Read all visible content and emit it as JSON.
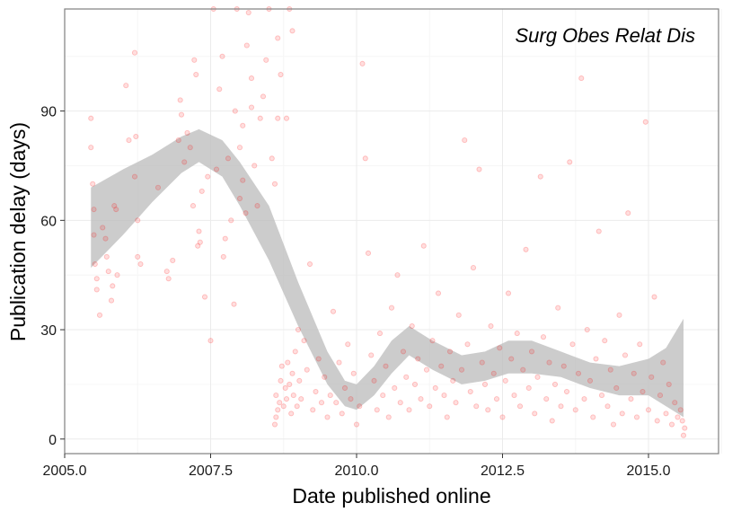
{
  "chart_data": {
    "type": "scatter",
    "title": "",
    "annotation": "Surg Obes Relat Dis",
    "xlabel": "Date published online",
    "ylabel": "Publication delay (days)",
    "xlim": [
      2005.0,
      2016.2
    ],
    "ylim": [
      -4,
      118
    ],
    "x_ticks": [
      2005.0,
      2007.5,
      2010.0,
      2012.5,
      2015.0
    ],
    "x_tick_labels": [
      "2005.0",
      "2007.5",
      "2010.0",
      "2012.5",
      "2015.0"
    ],
    "y_ticks": [
      0,
      30,
      60,
      90
    ],
    "y_tick_labels": [
      "0",
      "30",
      "60",
      "90"
    ],
    "grid": true,
    "colors": {
      "points": "#ff0000",
      "ribbon": "#bfbfbf",
      "grid": "#ebebeb",
      "border": "#7f7f7f"
    },
    "series": [
      {
        "kind": "points",
        "points": [
          [
            2005.45,
            88
          ],
          [
            2005.45,
            80
          ],
          [
            2005.48,
            70
          ],
          [
            2005.5,
            63
          ],
          [
            2005.5,
            56
          ],
          [
            2005.52,
            48
          ],
          [
            2005.55,
            44
          ],
          [
            2005.55,
            41
          ],
          [
            2005.6,
            34
          ],
          [
            2005.65,
            58
          ],
          [
            2005.7,
            55
          ],
          [
            2005.72,
            50
          ],
          [
            2005.75,
            46
          ],
          [
            2005.8,
            38
          ],
          [
            2005.82,
            42
          ],
          [
            2005.85,
            64
          ],
          [
            2005.88,
            63
          ],
          [
            2005.9,
            45
          ],
          [
            2006.05,
            97
          ],
          [
            2006.1,
            82
          ],
          [
            2006.2,
            106
          ],
          [
            2006.22,
            83
          ],
          [
            2006.2,
            72
          ],
          [
            2006.25,
            60
          ],
          [
            2006.25,
            50
          ],
          [
            2006.3,
            48
          ],
          [
            2006.6,
            69
          ],
          [
            2006.75,
            46
          ],
          [
            2006.78,
            44
          ],
          [
            2006.85,
            49
          ],
          [
            2006.95,
            82
          ],
          [
            2006.98,
            93
          ],
          [
            2007.0,
            89
          ],
          [
            2007.05,
            76
          ],
          [
            2007.1,
            84
          ],
          [
            2007.15,
            80
          ],
          [
            2007.2,
            64
          ],
          [
            2007.22,
            104
          ],
          [
            2007.25,
            100
          ],
          [
            2007.28,
            53
          ],
          [
            2007.3,
            57
          ],
          [
            2007.32,
            54
          ],
          [
            2007.35,
            68
          ],
          [
            2007.4,
            39
          ],
          [
            2007.45,
            72
          ],
          [
            2007.5,
            27
          ],
          [
            2007.55,
            118
          ],
          [
            2007.6,
            74
          ],
          [
            2007.65,
            96
          ],
          [
            2007.7,
            105
          ],
          [
            2007.72,
            50
          ],
          [
            2007.75,
            55
          ],
          [
            2007.8,
            77
          ],
          [
            2007.85,
            60
          ],
          [
            2007.9,
            37
          ],
          [
            2007.92,
            90
          ],
          [
            2007.95,
            118
          ],
          [
            2008.0,
            80
          ],
          [
            2008.0,
            66
          ],
          [
            2008.05,
            86
          ],
          [
            2008.05,
            71
          ],
          [
            2008.1,
            62
          ],
          [
            2008.12,
            108
          ],
          [
            2008.15,
            117
          ],
          [
            2008.2,
            91
          ],
          [
            2008.2,
            99
          ],
          [
            2008.25,
            75
          ],
          [
            2008.3,
            64
          ],
          [
            2008.35,
            88
          ],
          [
            2008.4,
            94
          ],
          [
            2008.45,
            104
          ],
          [
            2008.5,
            118
          ],
          [
            2008.55,
            77
          ],
          [
            2008.6,
            70
          ],
          [
            2008.65,
            88
          ],
          [
            2008.65,
            110
          ],
          [
            2008.7,
            100
          ],
          [
            2008.8,
            88
          ],
          [
            2008.85,
            118
          ],
          [
            2008.9,
            112
          ],
          [
            2008.6,
            4
          ],
          [
            2008.62,
            6
          ],
          [
            2008.62,
            12
          ],
          [
            2008.65,
            8
          ],
          [
            2008.68,
            10
          ],
          [
            2008.7,
            16
          ],
          [
            2008.72,
            20
          ],
          [
            2008.75,
            9
          ],
          [
            2008.78,
            14
          ],
          [
            2008.8,
            11
          ],
          [
            2008.82,
            21
          ],
          [
            2008.85,
            15
          ],
          [
            2008.88,
            7
          ],
          [
            2008.9,
            18
          ],
          [
            2008.92,
            12
          ],
          [
            2008.95,
            24
          ],
          [
            2008.98,
            9
          ],
          [
            2009.0,
            30
          ],
          [
            2009.02,
            16
          ],
          [
            2009.05,
            11
          ],
          [
            2009.1,
            27
          ],
          [
            2009.15,
            19
          ],
          [
            2009.2,
            48
          ],
          [
            2009.25,
            8
          ],
          [
            2009.3,
            13
          ],
          [
            2009.35,
            22
          ],
          [
            2009.4,
            10
          ],
          [
            2009.45,
            17
          ],
          [
            2009.5,
            6
          ],
          [
            2009.55,
            12
          ],
          [
            2009.6,
            35
          ],
          [
            2009.65,
            10
          ],
          [
            2009.7,
            21
          ],
          [
            2009.75,
            7
          ],
          [
            2009.8,
            14
          ],
          [
            2009.85,
            26
          ],
          [
            2009.9,
            11
          ],
          [
            2009.95,
            18
          ],
          [
            2010.0,
            4
          ],
          [
            2010.05,
            9
          ],
          [
            2010.1,
            103
          ],
          [
            2010.15,
            77
          ],
          [
            2010.2,
            51
          ],
          [
            2010.25,
            23
          ],
          [
            2010.3,
            16
          ],
          [
            2010.35,
            8
          ],
          [
            2010.4,
            29
          ],
          [
            2010.45,
            12
          ],
          [
            2010.5,
            20
          ],
          [
            2010.55,
            6
          ],
          [
            2010.6,
            36
          ],
          [
            2010.65,
            14
          ],
          [
            2010.7,
            45
          ],
          [
            2010.75,
            10
          ],
          [
            2010.8,
            24
          ],
          [
            2010.85,
            17
          ],
          [
            2010.9,
            8
          ],
          [
            2010.95,
            31
          ],
          [
            2011.0,
            15
          ],
          [
            2011.05,
            22
          ],
          [
            2011.1,
            11
          ],
          [
            2011.15,
            53
          ],
          [
            2011.2,
            19
          ],
          [
            2011.25,
            9
          ],
          [
            2011.3,
            27
          ],
          [
            2011.35,
            14
          ],
          [
            2011.4,
            40
          ],
          [
            2011.45,
            20
          ],
          [
            2011.5,
            12
          ],
          [
            2011.55,
            6
          ],
          [
            2011.6,
            24
          ],
          [
            2011.65,
            16
          ],
          [
            2011.7,
            10
          ],
          [
            2011.75,
            34
          ],
          [
            2011.8,
            19
          ],
          [
            2011.85,
            82
          ],
          [
            2011.9,
            26
          ],
          [
            2011.95,
            13
          ],
          [
            2012.0,
            47
          ],
          [
            2012.05,
            9
          ],
          [
            2012.1,
            74
          ],
          [
            2012.15,
            21
          ],
          [
            2012.2,
            15
          ],
          [
            2012.25,
            8
          ],
          [
            2012.3,
            31
          ],
          [
            2012.35,
            18
          ],
          [
            2012.4,
            11
          ],
          [
            2012.45,
            25
          ],
          [
            2012.5,
            6
          ],
          [
            2012.55,
            16
          ],
          [
            2012.6,
            40
          ],
          [
            2012.65,
            22
          ],
          [
            2012.7,
            12
          ],
          [
            2012.75,
            29
          ],
          [
            2012.8,
            9
          ],
          [
            2012.85,
            19
          ],
          [
            2012.9,
            52
          ],
          [
            2012.95,
            14
          ],
          [
            2013.0,
            24
          ],
          [
            2013.05,
            7
          ],
          [
            2013.1,
            17
          ],
          [
            2013.15,
            72
          ],
          [
            2013.2,
            28
          ],
          [
            2013.25,
            11
          ],
          [
            2013.3,
            21
          ],
          [
            2013.35,
            5
          ],
          [
            2013.4,
            15
          ],
          [
            2013.45,
            36
          ],
          [
            2013.5,
            9
          ],
          [
            2013.55,
            20
          ],
          [
            2013.6,
            13
          ],
          [
            2013.65,
            76
          ],
          [
            2013.7,
            26
          ],
          [
            2013.75,
            8
          ],
          [
            2013.8,
            18
          ],
          [
            2013.85,
            99
          ],
          [
            2013.9,
            11
          ],
          [
            2013.95,
            30
          ],
          [
            2014.0,
            16
          ],
          [
            2014.05,
            6
          ],
          [
            2014.1,
            22
          ],
          [
            2014.15,
            57
          ],
          [
            2014.2,
            12
          ],
          [
            2014.25,
            27
          ],
          [
            2014.3,
            9
          ],
          [
            2014.35,
            19
          ],
          [
            2014.4,
            4
          ],
          [
            2014.45,
            14
          ],
          [
            2014.5,
            34
          ],
          [
            2014.55,
            7
          ],
          [
            2014.6,
            23
          ],
          [
            2014.65,
            62
          ],
          [
            2014.7,
            11
          ],
          [
            2014.75,
            18
          ],
          [
            2014.8,
            6
          ],
          [
            2014.85,
            26
          ],
          [
            2014.9,
            13
          ],
          [
            2014.95,
            87
          ],
          [
            2015.0,
            8
          ],
          [
            2015.05,
            17
          ],
          [
            2015.1,
            39
          ],
          [
            2015.15,
            5
          ],
          [
            2015.2,
            12
          ],
          [
            2015.25,
            21
          ],
          [
            2015.3,
            7
          ],
          [
            2015.35,
            15
          ],
          [
            2015.4,
            4
          ],
          [
            2015.45,
            10
          ],
          [
            2015.5,
            6
          ],
          [
            2015.55,
            8
          ],
          [
            2015.6,
            1
          ],
          [
            2015.62,
            3
          ],
          [
            2015.58,
            5
          ]
        ]
      },
      {
        "kind": "smooth",
        "x": [
          2005.45,
          2006.0,
          2006.5,
          2007.0,
          2007.3,
          2007.7,
          2008.0,
          2008.5,
          2009.0,
          2009.5,
          2009.8,
          2010.0,
          2010.3,
          2010.6,
          2010.9,
          2011.3,
          2011.8,
          2012.2,
          2012.6,
          2013.0,
          2013.5,
          2014.0,
          2014.5,
          2015.0,
          2015.3,
          2015.6
        ],
        "upper": [
          69,
          74,
          78,
          83,
          85,
          82,
          76,
          64,
          43,
          24,
          16,
          15,
          20,
          27,
          31,
          27,
          23,
          24,
          27,
          27,
          24,
          21,
          20,
          22,
          25,
          33
        ],
        "lower": [
          47,
          56,
          65,
          73,
          76,
          72,
          64,
          49,
          31,
          15,
          9,
          8,
          12,
          18,
          23,
          19,
          15,
          16,
          18,
          18,
          17,
          14,
          12,
          12,
          9,
          6
        ]
      }
    ]
  }
}
